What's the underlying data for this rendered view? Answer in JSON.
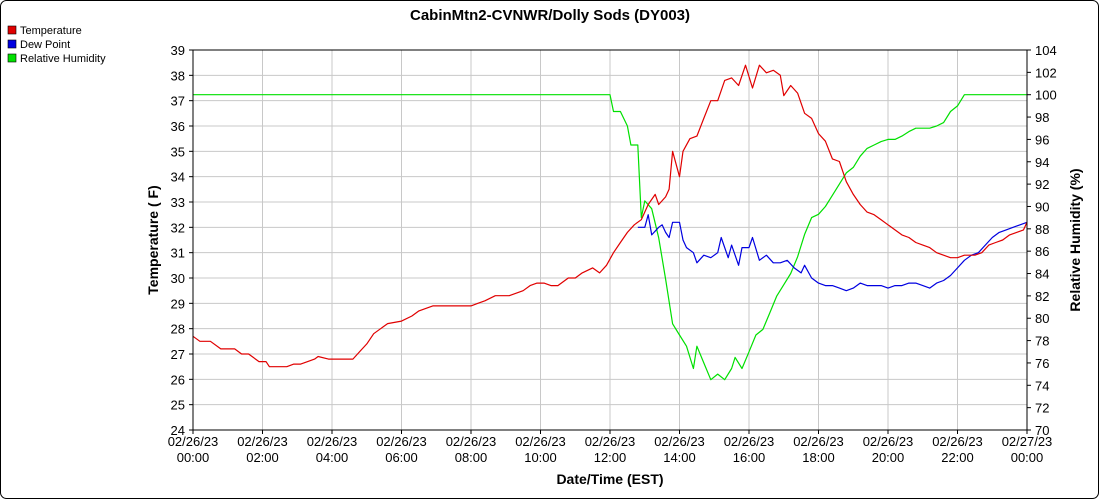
{
  "chart_data": {
    "type": "line",
    "title": "CabinMtn2-CVNWR/Dolly Sods (DY003)",
    "xlabel": "Date/Time (EST)",
    "ylabel": "Temperature ( F)",
    "y2label": "Relative Humidity (%)",
    "xlim": [
      0,
      24
    ],
    "ylim": [
      24,
      39
    ],
    "y2lim": [
      70,
      104
    ],
    "grid": true,
    "legend_position": "top-left",
    "x_ticks": [
      {
        "x": 0,
        "date": "02/26/23",
        "time": "00:00"
      },
      {
        "x": 2,
        "date": "02/26/23",
        "time": "02:00"
      },
      {
        "x": 4,
        "date": "02/26/23",
        "time": "04:00"
      },
      {
        "x": 6,
        "date": "02/26/23",
        "time": "06:00"
      },
      {
        "x": 8,
        "date": "02/26/23",
        "time": "08:00"
      },
      {
        "x": 10,
        "date": "02/26/23",
        "time": "10:00"
      },
      {
        "x": 12,
        "date": "02/26/23",
        "time": "12:00"
      },
      {
        "x": 14,
        "date": "02/26/23",
        "time": "14:00"
      },
      {
        "x": 16,
        "date": "02/26/23",
        "time": "16:00"
      },
      {
        "x": 18,
        "date": "02/26/23",
        "time": "18:00"
      },
      {
        "x": 20,
        "date": "02/26/23",
        "time": "20:00"
      },
      {
        "x": 22,
        "date": "02/26/23",
        "time": "22:00"
      },
      {
        "x": 24,
        "date": "02/27/23",
        "time": "00:00"
      }
    ],
    "y_ticks": [
      24,
      25,
      26,
      27,
      28,
      29,
      30,
      31,
      32,
      33,
      34,
      35,
      36,
      37,
      38,
      39
    ],
    "y2_ticks": [
      70,
      72,
      74,
      76,
      78,
      80,
      82,
      84,
      86,
      88,
      90,
      92,
      94,
      96,
      98,
      100,
      102,
      104
    ],
    "series": [
      {
        "name": "Temperature",
        "color": "#e00000",
        "axis": "left",
        "points": [
          [
            0,
            27.7
          ],
          [
            0.2,
            27.5
          ],
          [
            0.5,
            27.5
          ],
          [
            0.8,
            27.2
          ],
          [
            1.2,
            27.2
          ],
          [
            1.4,
            27.0
          ],
          [
            1.6,
            27.0
          ],
          [
            1.9,
            26.7
          ],
          [
            2.1,
            26.7
          ],
          [
            2.2,
            26.5
          ],
          [
            2.5,
            26.5
          ],
          [
            2.7,
            26.5
          ],
          [
            2.9,
            26.6
          ],
          [
            3.1,
            26.6
          ],
          [
            3.3,
            26.7
          ],
          [
            3.5,
            26.8
          ],
          [
            3.6,
            26.9
          ],
          [
            3.9,
            26.8
          ],
          [
            4.1,
            26.8
          ],
          [
            4.5,
            26.8
          ],
          [
            4.6,
            26.8
          ],
          [
            4.8,
            27.1
          ],
          [
            5.0,
            27.4
          ],
          [
            5.2,
            27.8
          ],
          [
            5.4,
            28.0
          ],
          [
            5.6,
            28.2
          ],
          [
            6.0,
            28.3
          ],
          [
            6.3,
            28.5
          ],
          [
            6.5,
            28.7
          ],
          [
            6.7,
            28.8
          ],
          [
            6.9,
            28.9
          ],
          [
            7.2,
            28.9
          ],
          [
            7.5,
            28.9
          ],
          [
            7.9,
            28.9
          ],
          [
            8.0,
            28.9
          ],
          [
            8.2,
            29.0
          ],
          [
            8.4,
            29.1
          ],
          [
            8.7,
            29.3
          ],
          [
            8.9,
            29.3
          ],
          [
            9.1,
            29.3
          ],
          [
            9.3,
            29.4
          ],
          [
            9.5,
            29.5
          ],
          [
            9.7,
            29.7
          ],
          [
            9.9,
            29.8
          ],
          [
            10.1,
            29.8
          ],
          [
            10.3,
            29.7
          ],
          [
            10.5,
            29.7
          ],
          [
            10.6,
            29.8
          ],
          [
            10.8,
            30.0
          ],
          [
            11.0,
            30.0
          ],
          [
            11.2,
            30.2
          ],
          [
            11.5,
            30.4
          ],
          [
            11.7,
            30.2
          ],
          [
            11.9,
            30.5
          ],
          [
            12.1,
            31.0
          ],
          [
            12.3,
            31.4
          ],
          [
            12.5,
            31.8
          ],
          [
            12.7,
            32.1
          ],
          [
            12.9,
            32.3
          ],
          [
            13.1,
            32.9
          ],
          [
            13.3,
            33.3
          ],
          [
            13.4,
            32.9
          ],
          [
            13.6,
            33.2
          ],
          [
            13.7,
            33.5
          ],
          [
            13.8,
            35.0
          ],
          [
            14.0,
            34.0
          ],
          [
            14.1,
            35.0
          ],
          [
            14.3,
            35.5
          ],
          [
            14.5,
            35.6
          ],
          [
            14.7,
            36.3
          ],
          [
            14.9,
            37.0
          ],
          [
            15.1,
            37.0
          ],
          [
            15.3,
            37.8
          ],
          [
            15.5,
            37.9
          ],
          [
            15.7,
            37.6
          ],
          [
            15.9,
            38.4
          ],
          [
            16.1,
            37.5
          ],
          [
            16.3,
            38.4
          ],
          [
            16.5,
            38.1
          ],
          [
            16.7,
            38.2
          ],
          [
            16.9,
            38.0
          ],
          [
            17.0,
            37.2
          ],
          [
            17.2,
            37.6
          ],
          [
            17.4,
            37.3
          ],
          [
            17.6,
            36.5
          ],
          [
            17.8,
            36.3
          ],
          [
            18.0,
            35.7
          ],
          [
            18.2,
            35.4
          ],
          [
            18.4,
            34.7
          ],
          [
            18.6,
            34.6
          ],
          [
            18.8,
            33.8
          ],
          [
            19.0,
            33.3
          ],
          [
            19.2,
            32.9
          ],
          [
            19.4,
            32.6
          ],
          [
            19.6,
            32.5
          ],
          [
            19.8,
            32.3
          ],
          [
            20.0,
            32.1
          ],
          [
            20.2,
            31.9
          ],
          [
            20.4,
            31.7
          ],
          [
            20.6,
            31.6
          ],
          [
            20.8,
            31.4
          ],
          [
            21.0,
            31.3
          ],
          [
            21.2,
            31.2
          ],
          [
            21.4,
            31.0
          ],
          [
            21.6,
            30.9
          ],
          [
            21.8,
            30.8
          ],
          [
            22.0,
            30.8
          ],
          [
            22.2,
            30.9
          ],
          [
            22.5,
            30.9
          ],
          [
            22.7,
            31.0
          ],
          [
            22.9,
            31.3
          ],
          [
            23.1,
            31.4
          ],
          [
            23.3,
            31.5
          ],
          [
            23.5,
            31.7
          ],
          [
            23.7,
            31.8
          ],
          [
            23.9,
            31.9
          ],
          [
            24.0,
            32.2
          ]
        ]
      },
      {
        "name": "Dew Point",
        "color": "#0000e0",
        "axis": "left",
        "points": [
          [
            12.8,
            32.0
          ],
          [
            13.0,
            32.0
          ],
          [
            13.1,
            32.5
          ],
          [
            13.2,
            31.7
          ],
          [
            13.4,
            32.0
          ],
          [
            13.5,
            32.1
          ],
          [
            13.6,
            31.8
          ],
          [
            13.7,
            31.6
          ],
          [
            13.8,
            32.2
          ],
          [
            14.0,
            32.2
          ],
          [
            14.1,
            31.5
          ],
          [
            14.2,
            31.2
          ],
          [
            14.4,
            31.0
          ],
          [
            14.5,
            30.6
          ],
          [
            14.7,
            30.9
          ],
          [
            14.9,
            30.8
          ],
          [
            15.1,
            31.0
          ],
          [
            15.2,
            31.6
          ],
          [
            15.4,
            30.8
          ],
          [
            15.5,
            31.3
          ],
          [
            15.7,
            30.5
          ],
          [
            15.8,
            31.2
          ],
          [
            16.0,
            31.2
          ],
          [
            16.1,
            31.6
          ],
          [
            16.3,
            30.7
          ],
          [
            16.5,
            30.9
          ],
          [
            16.7,
            30.6
          ],
          [
            16.9,
            30.6
          ],
          [
            17.1,
            30.7
          ],
          [
            17.3,
            30.4
          ],
          [
            17.5,
            30.2
          ],
          [
            17.6,
            30.5
          ],
          [
            17.8,
            30.0
          ],
          [
            18.0,
            29.8
          ],
          [
            18.2,
            29.7
          ],
          [
            18.4,
            29.7
          ],
          [
            18.6,
            29.6
          ],
          [
            18.8,
            29.5
          ],
          [
            19.0,
            29.6
          ],
          [
            19.2,
            29.8
          ],
          [
            19.4,
            29.7
          ],
          [
            19.6,
            29.7
          ],
          [
            19.8,
            29.7
          ],
          [
            20.0,
            29.6
          ],
          [
            20.2,
            29.7
          ],
          [
            20.4,
            29.7
          ],
          [
            20.6,
            29.8
          ],
          [
            20.8,
            29.8
          ],
          [
            21.0,
            29.7
          ],
          [
            21.2,
            29.6
          ],
          [
            21.4,
            29.8
          ],
          [
            21.6,
            29.9
          ],
          [
            21.8,
            30.1
          ],
          [
            22.0,
            30.4
          ],
          [
            22.2,
            30.7
          ],
          [
            22.4,
            30.9
          ],
          [
            22.6,
            31.0
          ],
          [
            22.8,
            31.3
          ],
          [
            23.0,
            31.6
          ],
          [
            23.2,
            31.8
          ],
          [
            23.4,
            31.9
          ],
          [
            23.6,
            32.0
          ],
          [
            23.8,
            32.1
          ],
          [
            24.0,
            32.2
          ]
        ]
      },
      {
        "name": "Relative Humidity",
        "color": "#00e000",
        "axis": "right",
        "points": [
          [
            0,
            100
          ],
          [
            12.0,
            100
          ],
          [
            12.1,
            98.5
          ],
          [
            12.3,
            98.5
          ],
          [
            12.5,
            97.2
          ],
          [
            12.6,
            95.5
          ],
          [
            12.8,
            95.5
          ],
          [
            12.9,
            89
          ],
          [
            13.0,
            90.5
          ],
          [
            13.2,
            89.8
          ],
          [
            13.4,
            87.2
          ],
          [
            13.6,
            83.5
          ],
          [
            13.8,
            79.5
          ],
          [
            14.0,
            78.5
          ],
          [
            14.2,
            77.5
          ],
          [
            14.4,
            75.5
          ],
          [
            14.5,
            77.5
          ],
          [
            14.7,
            76.0
          ],
          [
            14.9,
            74.5
          ],
          [
            15.1,
            75.0
          ],
          [
            15.3,
            74.5
          ],
          [
            15.5,
            75.5
          ],
          [
            15.6,
            76.5
          ],
          [
            15.8,
            75.5
          ],
          [
            16.0,
            77.0
          ],
          [
            16.2,
            78.5
          ],
          [
            16.4,
            79.0
          ],
          [
            16.6,
            80.5
          ],
          [
            16.8,
            82.0
          ],
          [
            17.0,
            83.0
          ],
          [
            17.2,
            84.0
          ],
          [
            17.4,
            85.5
          ],
          [
            17.6,
            87.5
          ],
          [
            17.8,
            89.0
          ],
          [
            18.0,
            89.3
          ],
          [
            18.2,
            90.0
          ],
          [
            18.4,
            91.0
          ],
          [
            18.6,
            92.0
          ],
          [
            18.8,
            93.0
          ],
          [
            19.0,
            93.5
          ],
          [
            19.2,
            94.5
          ],
          [
            19.4,
            95.2
          ],
          [
            19.6,
            95.5
          ],
          [
            19.8,
            95.8
          ],
          [
            20.0,
            96.0
          ],
          [
            20.2,
            96.0
          ],
          [
            20.4,
            96.3
          ],
          [
            20.6,
            96.7
          ],
          [
            20.8,
            97.0
          ],
          [
            21.0,
            97.0
          ],
          [
            21.2,
            97.0
          ],
          [
            21.4,
            97.2
          ],
          [
            21.6,
            97.5
          ],
          [
            21.8,
            98.5
          ],
          [
            22.0,
            99.0
          ],
          [
            22.2,
            100
          ],
          [
            22.4,
            100
          ],
          [
            24.0,
            100
          ]
        ]
      }
    ]
  }
}
